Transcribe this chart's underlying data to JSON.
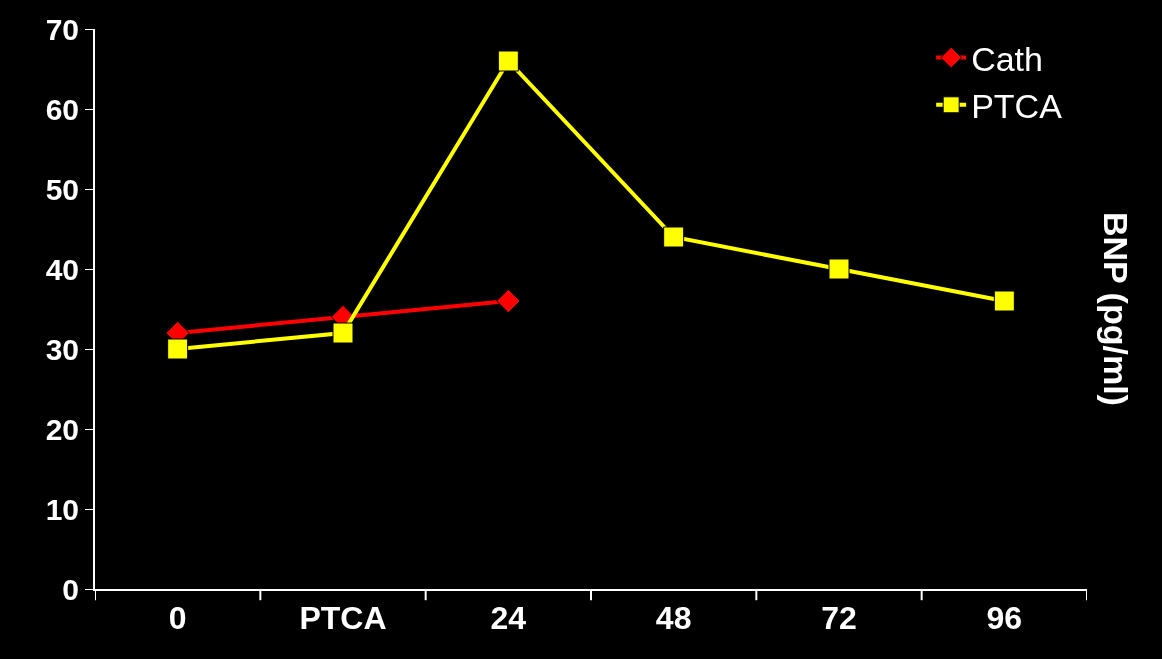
{
  "chart_data": {
    "type": "line",
    "ylabel": "BNP (pg/ml)",
    "categories": [
      "0",
      "PTCA",
      "24",
      "48",
      "72",
      "96"
    ],
    "series": [
      {
        "name": "Cath",
        "color": "#ff0000",
        "marker": "diamond",
        "values": [
          32,
          34,
          36,
          null,
          null,
          null
        ]
      },
      {
        "name": "PTCA",
        "color": "#ffff00",
        "marker": "square",
        "values": [
          30,
          32,
          66,
          44,
          40,
          36
        ]
      }
    ],
    "ylim": [
      0,
      70
    ],
    "yticks": [
      0,
      10,
      20,
      30,
      40,
      50,
      60,
      70
    ],
    "grid": false,
    "legend": "top right",
    "line_style": "solid"
  }
}
